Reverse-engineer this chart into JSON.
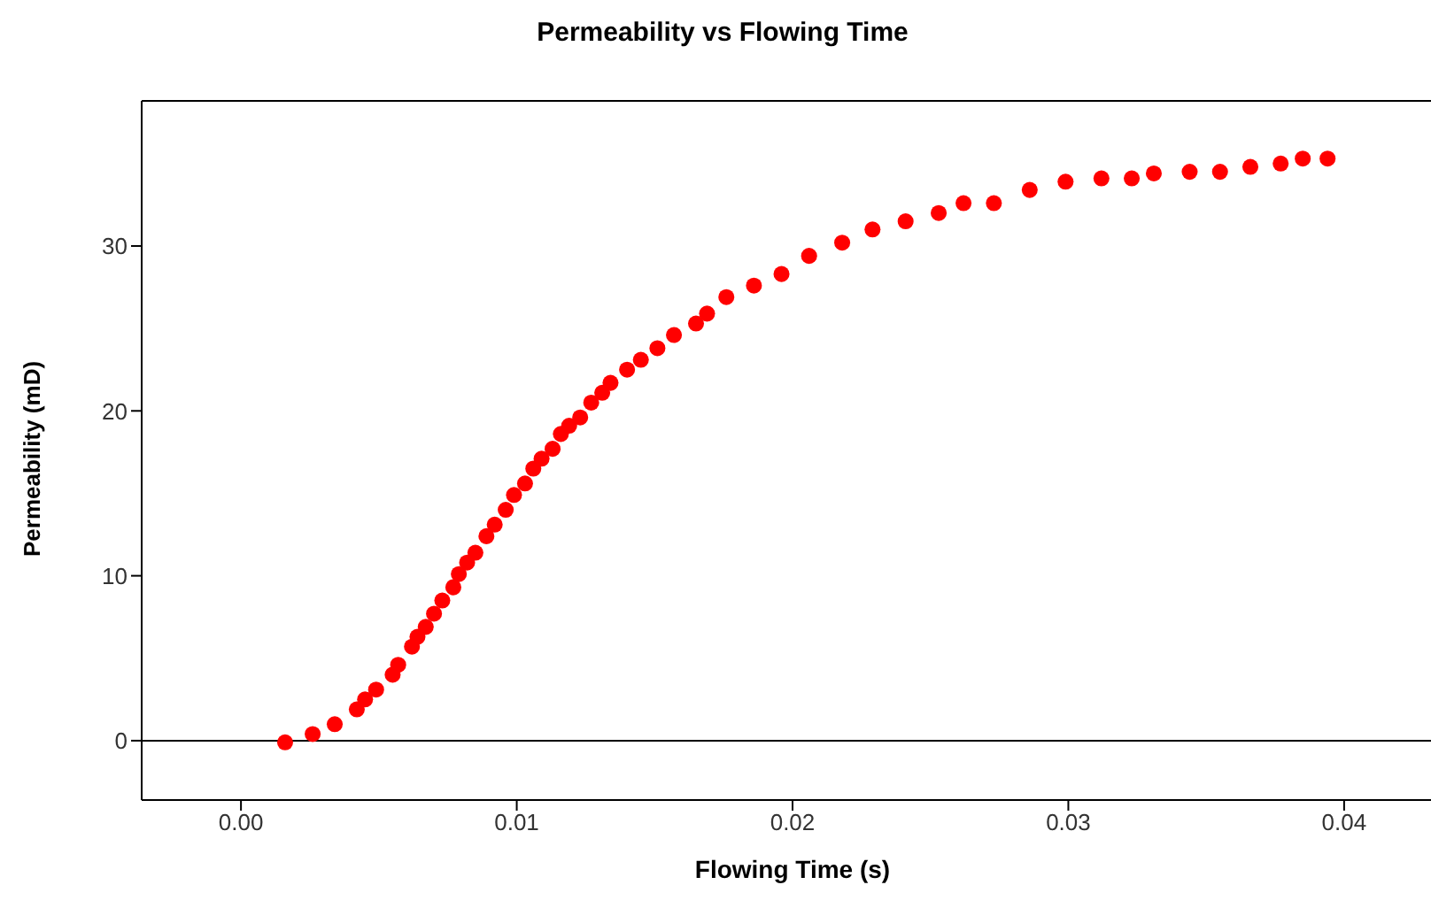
{
  "chart_data": {
    "type": "scatter",
    "title": "Permeability vs Flowing Time",
    "xlabel": "Flowing Time (s)",
    "ylabel": "Permeability (mD)",
    "x": [
      0.0016,
      0.0026,
      0.0034,
      0.0042,
      0.0045,
      0.0049,
      0.0055,
      0.0057,
      0.0062,
      0.0064,
      0.0067,
      0.007,
      0.0073,
      0.0077,
      0.0079,
      0.0082,
      0.0085,
      0.0089,
      0.0092,
      0.0096,
      0.0099,
      0.0103,
      0.0106,
      0.0109,
      0.0113,
      0.0116,
      0.0119,
      0.0123,
      0.0127,
      0.0131,
      0.0134,
      0.014,
      0.0145,
      0.0151,
      0.0157,
      0.0165,
      0.0169,
      0.0176,
      0.0186,
      0.0196,
      0.0206,
      0.0218,
      0.0229,
      0.0241,
      0.0253,
      0.0262,
      0.0273,
      0.0286,
      0.0299,
      0.0312,
      0.0323,
      0.0331,
      0.0344,
      0.0355,
      0.0366,
      0.0377,
      0.0385,
      0.0394
    ],
    "series": [
      {
        "color": "#ff0000",
        "values": [
          -0.1,
          0.4,
          1.0,
          1.9,
          2.5,
          3.1,
          4.0,
          4.6,
          5.7,
          6.3,
          6.9,
          7.7,
          8.5,
          9.3,
          10.1,
          10.8,
          11.4,
          12.4,
          13.1,
          14.0,
          14.9,
          15.6,
          16.5,
          17.1,
          17.7,
          18.6,
          19.1,
          19.6,
          20.5,
          21.1,
          21.7,
          22.5,
          23.1,
          23.8,
          24.6,
          25.3,
          25.9,
          26.9,
          27.6,
          28.3,
          29.4,
          30.2,
          31.0,
          31.5,
          32.0,
          32.6,
          32.6,
          33.4,
          33.9,
          34.1,
          34.1,
          34.4,
          34.5,
          34.5,
          34.8,
          35.0,
          35.3,
          35.3
        ]
      }
    ],
    "xlim": [
      -0.0036,
      0.0436
    ],
    "xticks": [
      {
        "value": 0,
        "label": "0.00"
      },
      {
        "value": 0.01,
        "label": "0.01"
      },
      {
        "value": 0.02,
        "label": "0.02"
      },
      {
        "value": 0.03,
        "label": "0.03"
      },
      {
        "value": 0.04,
        "label": "0.04"
      }
    ],
    "ylim": [
      -3.6,
      38.8
    ],
    "yticks": [
      0,
      10,
      20,
      30
    ],
    "ref_lines": [
      {
        "axis": "y",
        "value": 0,
        "color": "#000000"
      }
    ],
    "marker": "circle",
    "grid": false,
    "legend": false
  }
}
